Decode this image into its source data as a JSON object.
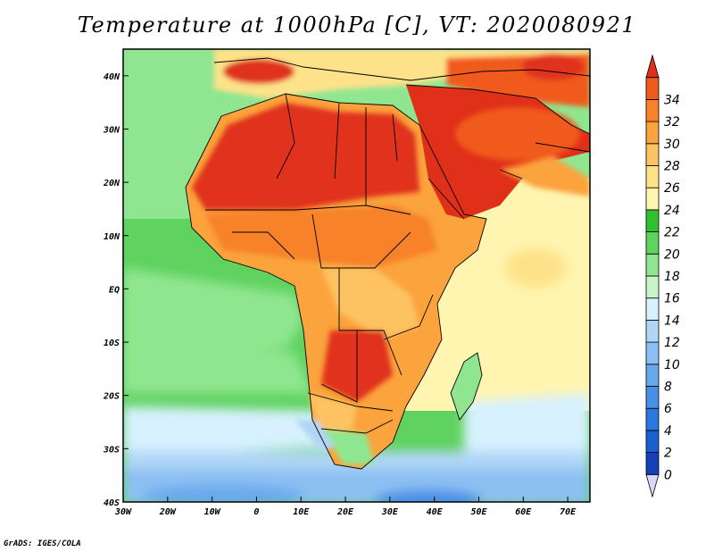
{
  "title": "Temperature at 1000hPa [C], VT: 2020080921",
  "credit": "GrADS: IGES/COLA",
  "map": {
    "lon_range": [
      -30,
      75
    ],
    "lat_range": [
      -40,
      45
    ],
    "lon_ticks": [
      {
        "value": -30,
        "label": "30W"
      },
      {
        "value": -20,
        "label": "20W"
      },
      {
        "value": -10,
        "label": "10W"
      },
      {
        "value": 0,
        "label": "0"
      },
      {
        "value": 10,
        "label": "10E"
      },
      {
        "value": 20,
        "label": "20E"
      },
      {
        "value": 30,
        "label": "30E"
      },
      {
        "value": 40,
        "label": "40E"
      },
      {
        "value": 50,
        "label": "50E"
      },
      {
        "value": 60,
        "label": "60E"
      },
      {
        "value": 70,
        "label": "70E"
      }
    ],
    "lat_ticks": [
      {
        "value": 40,
        "label": "40N"
      },
      {
        "value": 30,
        "label": "30N"
      },
      {
        "value": 20,
        "label": "20N"
      },
      {
        "value": 10,
        "label": "10N"
      },
      {
        "value": 0,
        "label": "EQ"
      },
      {
        "value": -10,
        "label": "10S"
      },
      {
        "value": -20,
        "label": "20S"
      },
      {
        "value": -30,
        "label": "30S"
      },
      {
        "value": -40,
        "label": "40S"
      }
    ]
  },
  "colorbar": {
    "labels": [
      "0",
      "2",
      "4",
      "6",
      "8",
      "10",
      "12",
      "14",
      "16",
      "18",
      "20",
      "22",
      "24",
      "26",
      "28",
      "30",
      "32",
      "34"
    ],
    "colors": [
      "#0a1f8f",
      "#1540b8",
      "#1e5fd0",
      "#2d78de",
      "#4a8fe6",
      "#6aa8ee",
      "#8cc0f2",
      "#b0d6f6",
      "#d7f1ff",
      "#c8f5c8",
      "#90e690",
      "#5fd25f",
      "#30c030",
      "#fff5b0",
      "#fee28a",
      "#fdc262",
      "#fba33c",
      "#f7822a",
      "#f05a1c",
      "#e0301a"
    ]
  },
  "colors": {
    "ocean_south_cold": "#6aa8ee",
    "ocean_cool": "#d7f1ff",
    "ocean_green": "#5fd25f",
    "ocean_warm": "#fff5b0",
    "land_hot": "#e0301a",
    "land_warm": "#fba33c",
    "border": "#000000"
  }
}
